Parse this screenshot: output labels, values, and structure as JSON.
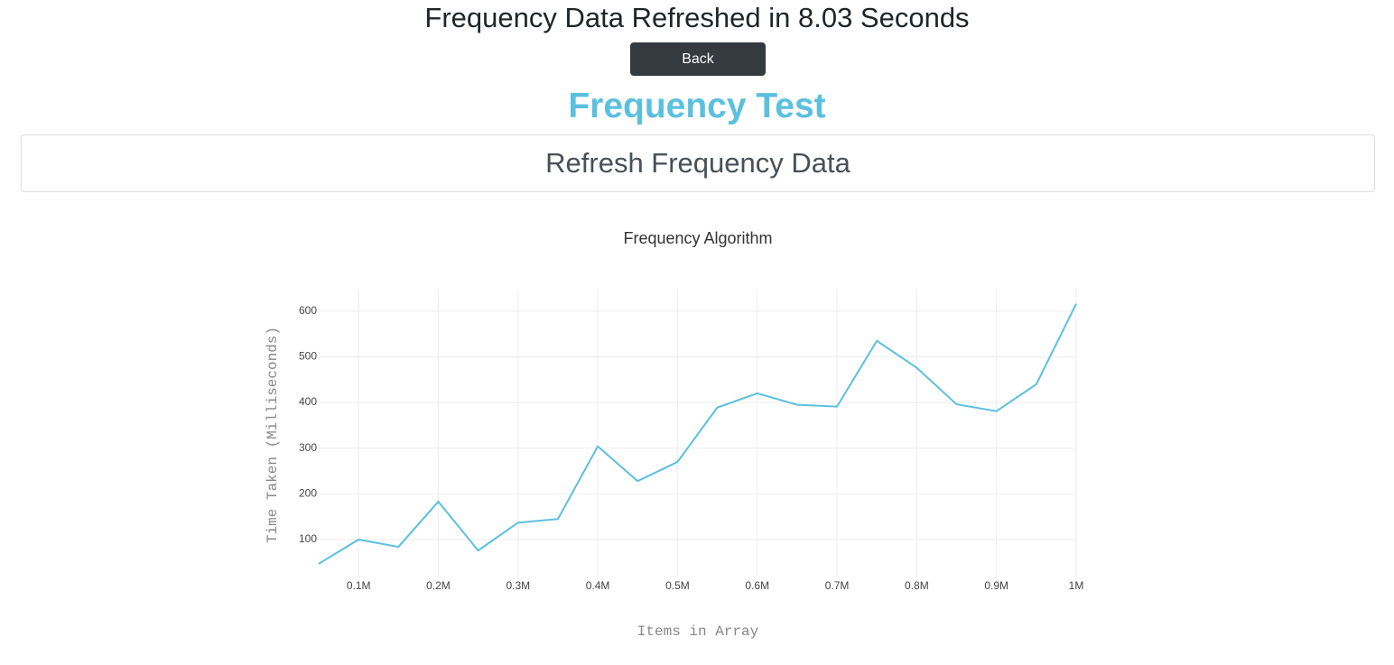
{
  "header": {
    "title": "Frequency Data Refreshed in 8.03 Seconds",
    "button": "Back"
  },
  "heading": "Frequency Test",
  "card": {
    "label": "Refresh Frequency Data"
  },
  "chart_data": {
    "type": "line",
    "title": "Frequency Algorithm",
    "x_label": "Items in Array",
    "y_label": "Time Taken (Milliseconds)",
    "x": [
      50000,
      100000,
      150000,
      200000,
      250000,
      300000,
      350000,
      400000,
      450000,
      500000,
      550000,
      600000,
      650000,
      700000,
      750000,
      800000,
      850000,
      900000,
      950000,
      1000000
    ],
    "values": [
      47,
      100,
      84,
      183,
      76,
      137,
      145,
      304,
      228,
      270,
      389,
      420,
      395,
      391,
      535,
      476,
      396,
      381,
      440,
      616
    ],
    "color": "#5bc0de",
    "xlim": [
      50000,
      1000000
    ],
    "xticks": [
      {
        "value": 100000,
        "label": "0.1M"
      },
      {
        "value": 200000,
        "label": "0.2M"
      },
      {
        "value": 300000,
        "label": "0.3M"
      },
      {
        "value": 400000,
        "label": "0.4M"
      },
      {
        "value": 500000,
        "label": "0.5M"
      },
      {
        "value": 600000,
        "label": "0.6M"
      },
      {
        "value": 700000,
        "label": "0.7M"
      },
      {
        "value": 800000,
        "label": "0.8M"
      },
      {
        "value": 900000,
        "label": "0.9M"
      },
      {
        "value": 1000000,
        "label": "1M"
      }
    ],
    "ylim": [
      17,
      649
    ],
    "yticks": [
      100,
      200,
      300,
      400,
      500,
      600
    ],
    "grid": true
  }
}
